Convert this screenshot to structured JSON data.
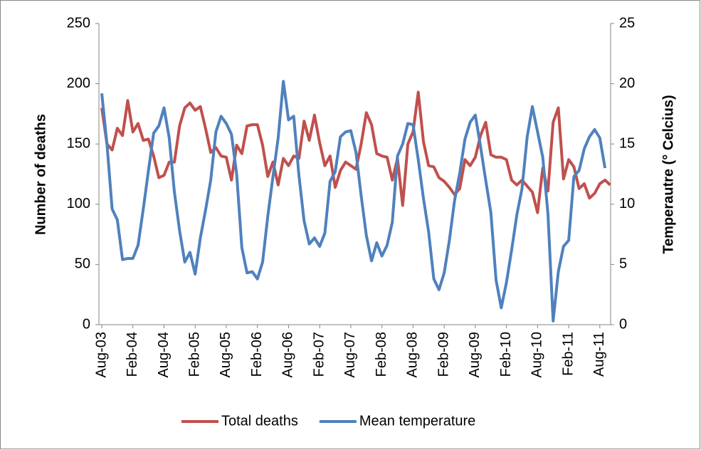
{
  "chart_data": {
    "type": "line",
    "categories": [
      "Aug-03",
      null,
      null,
      null,
      null,
      null,
      "Feb-04",
      null,
      null,
      null,
      null,
      null,
      "Aug-04",
      null,
      null,
      null,
      null,
      null,
      "Feb-05",
      null,
      null,
      null,
      null,
      null,
      "Aug-05",
      null,
      null,
      null,
      null,
      null,
      "Feb-06",
      null,
      null,
      null,
      null,
      null,
      "Aug-06",
      null,
      null,
      null,
      null,
      null,
      "Feb-07",
      null,
      null,
      null,
      null,
      null,
      "Aug-07",
      null,
      null,
      null,
      null,
      null,
      "Feb-08",
      null,
      null,
      null,
      null,
      null,
      "Aug-08",
      null,
      null,
      null,
      null,
      null,
      "Feb-09",
      null,
      null,
      null,
      null,
      null,
      "Aug-09",
      null,
      null,
      null,
      null,
      null,
      "Feb-10",
      null,
      null,
      null,
      null,
      null,
      "Aug-10",
      null,
      null,
      null,
      null,
      null,
      "Feb-11",
      null,
      null,
      null,
      null,
      null,
      "Aug-11",
      null,
      null
    ],
    "series": [
      {
        "name": "Total deaths",
        "color": "#c0504d",
        "axis": "y",
        "values": [
          180,
          150,
          145,
          163,
          157,
          186,
          160,
          167,
          153,
          154,
          140,
          122,
          124,
          135,
          135,
          165,
          180,
          184,
          178,
          181,
          163,
          143,
          147,
          140,
          139,
          120,
          149,
          142,
          165,
          166,
          166,
          149,
          123,
          135,
          116,
          138,
          132,
          140,
          138,
          169,
          153,
          174,
          151,
          132,
          140,
          114,
          128,
          135,
          132,
          129,
          150,
          176,
          166,
          142,
          140,
          139,
          120,
          138,
          99,
          150,
          160,
          193,
          152,
          132,
          131,
          122,
          119,
          114,
          108,
          113,
          137,
          132,
          139,
          157,
          168,
          141,
          139,
          139,
          137,
          120,
          116,
          120,
          115,
          110,
          93,
          130,
          111,
          168,
          180,
          121,
          137,
          131,
          113,
          117,
          105,
          109,
          117,
          120,
          116
        ]
      },
      {
        "name": "Mean temperature",
        "color": "#4f81bd",
        "axis": "y2",
        "values": [
          19.2,
          15,
          9.6,
          8.7,
          5.4,
          5.5,
          5.5,
          6.6,
          9.6,
          12.8,
          15.9,
          16.5,
          18,
          15.5,
          11,
          7.8,
          5.2,
          6,
          4.2,
          7.2,
          9.5,
          12,
          16,
          17.3,
          16.7,
          15.8,
          12.5,
          6.4,
          4.3,
          4.4,
          3.8,
          5.2,
          9,
          12.3,
          15.5,
          20.2,
          17,
          17.3,
          12.4,
          8.6,
          6.7,
          7.2,
          6.5,
          7.6,
          11.9,
          12.7,
          15.6,
          16,
          16.1,
          14.3,
          10.7,
          7.4,
          5.3,
          6.8,
          5.7,
          6.6,
          8.5,
          14,
          15,
          16.7,
          16.6,
          13.7,
          10.5,
          7.7,
          3.8,
          2.9,
          4.3,
          7,
          10.3,
          12.6,
          15.4,
          16.8,
          17.4,
          14.8,
          12,
          9.3,
          3.7,
          1.4,
          3.5,
          6.2,
          9.1,
          11.3,
          15.6,
          18.1,
          16,
          13.9,
          9.2,
          0.3,
          4.4,
          6.5,
          7,
          12.3,
          12.8,
          14.6,
          15.6,
          16.2,
          15.5,
          13,
          null
        ]
      }
    ],
    "ylabel": "Number of deaths",
    "y2label": "Temperautre (° Celcius)",
    "ylim": [
      0,
      250
    ],
    "yticks": [
      0,
      50,
      100,
      150,
      200,
      250
    ],
    "y2lim": [
      0,
      25
    ],
    "y2ticks": [
      0,
      5,
      10,
      15,
      20,
      25
    ],
    "legend": "bottom"
  }
}
